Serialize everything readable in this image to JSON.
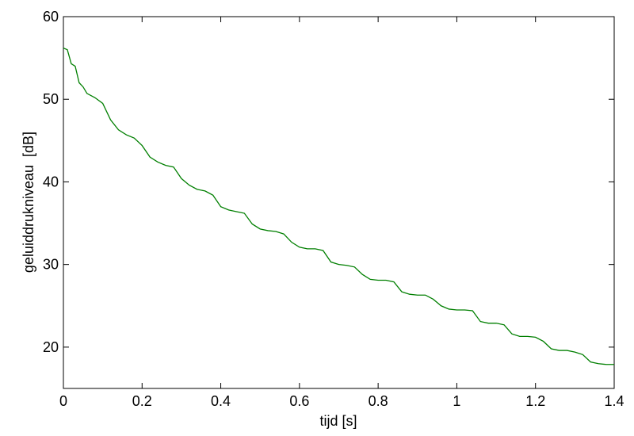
{
  "chart_data": {
    "type": "line",
    "xlabel": "tijd [s]",
    "ylabel": "geluiddrukniveau  [dB]",
    "x": [
      0,
      0.01,
      0.02,
      0.03,
      0.04,
      0.05,
      0.06,
      0.08,
      0.1,
      0.12,
      0.14,
      0.16,
      0.18,
      0.2,
      0.22,
      0.24,
      0.26,
      0.28,
      0.3,
      0.32,
      0.34,
      0.36,
      0.38,
      0.4,
      0.42,
      0.44,
      0.46,
      0.48,
      0.5,
      0.52,
      0.54,
      0.56,
      0.58,
      0.6,
      0.62,
      0.64,
      0.66,
      0.68,
      0.7,
      0.72,
      0.74,
      0.76,
      0.78,
      0.8,
      0.82,
      0.84,
      0.86,
      0.88,
      0.9,
      0.92,
      0.94,
      0.96,
      0.98,
      1.0,
      1.02,
      1.04,
      1.06,
      1.08,
      1.1,
      1.12,
      1.14,
      1.16,
      1.18,
      1.2,
      1.22,
      1.24,
      1.26,
      1.28,
      1.3,
      1.32,
      1.34,
      1.36,
      1.38,
      1.4
    ],
    "series": [
      {
        "color": "#007f00",
        "values": [
          56.2,
          56,
          54.3,
          54,
          52,
          51.5,
          50.7,
          50.2,
          49.5,
          47.5,
          46.3,
          45.7,
          45.3,
          44.4,
          43,
          42.4,
          42,
          41.8,
          40.4,
          39.6,
          39.1,
          38.9,
          38.4,
          37,
          36.6,
          36.4,
          36.2,
          34.9,
          34.3,
          34.1,
          34,
          33.7,
          32.7,
          32.1,
          31.9,
          31.9,
          31.7,
          30.3,
          30,
          29.9,
          29.7,
          28.8,
          28.2,
          28.1,
          28.1,
          27.9,
          26.7,
          26.4,
          26.3,
          26.3,
          25.8,
          25,
          24.6,
          24.5,
          24.5,
          24.4,
          23.1,
          22.9,
          22.9,
          22.7,
          21.6,
          21.3,
          21.3,
          21.2,
          20.7,
          19.8,
          19.6,
          19.6,
          19.4,
          19.1,
          18.2,
          18,
          17.9,
          17.9
        ]
      }
    ],
    "xlim": [
      0,
      1.4
    ],
    "xticks": [
      0,
      0.2,
      0.4,
      0.6,
      0.8,
      1,
      1.2,
      1.4
    ],
    "ylim": [
      15,
      60
    ],
    "yticks": [
      20,
      30,
      40,
      50,
      60
    ],
    "grid": false
  }
}
